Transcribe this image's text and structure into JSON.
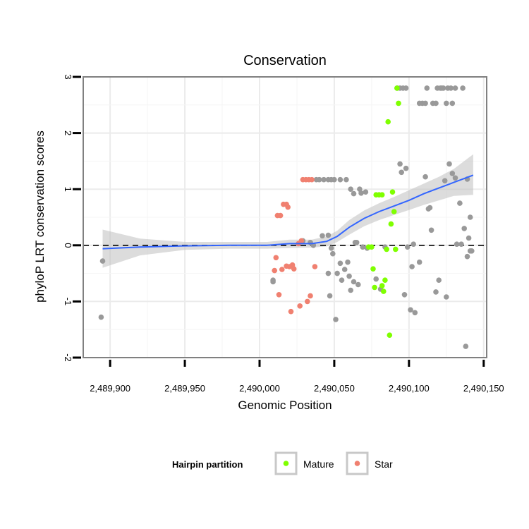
{
  "chart_data": {
    "type": "scatter",
    "title": "Conservation",
    "xlabel": "Genomic Position",
    "ylabel": "phyloP LRT conservation scores",
    "xlim": [
      2489882,
      2490152
    ],
    "ylim": [
      -2,
      3
    ],
    "x_ticks": [
      2489900,
      2489950,
      2490000,
      2490050,
      2490100,
      2490150
    ],
    "x_tick_labels": [
      "2,489,900",
      "2,489,950",
      "2,490,000",
      "2,490,050",
      "2,490,100",
      "2,490,150"
    ],
    "y_ticks": [
      -2,
      -1,
      0,
      1,
      2,
      3
    ],
    "y_tick_labels": [
      "-2",
      "-1",
      "0",
      "1",
      "2",
      "3"
    ],
    "reference_line": {
      "y": 0,
      "style": "dashed"
    },
    "legend": {
      "title": "Hairpin partition",
      "position": "bottom",
      "entries": [
        {
          "label": "Mature",
          "color": "#7fff00"
        },
        {
          "label": "Star",
          "color": "#f08070"
        }
      ]
    },
    "colors": {
      "Mature": "#7fff00",
      "Star": "#f08070",
      "Other": "#999999",
      "smooth": "#3366ff",
      "band": "#cccccc"
    },
    "series": [
      {
        "name": "Other",
        "points": [
          [
            2489895,
            -0.28
          ],
          [
            2489894,
            -1.28
          ],
          [
            2490009,
            -0.62
          ],
          [
            2490009,
            -0.65
          ],
          [
            2490029,
            0.08
          ],
          [
            2490034,
            0.05
          ],
          [
            2490036,
            0.0
          ],
          [
            2490038,
            1.17
          ],
          [
            2490040,
            1.17
          ],
          [
            2490043,
            1.17
          ],
          [
            2490046,
            1.17
          ],
          [
            2490048,
            1.17
          ],
          [
            2490050,
            1.17
          ],
          [
            2490054,
            1.17
          ],
          [
            2490058,
            1.17
          ],
          [
            2490042,
            0.17
          ],
          [
            2490046,
            0.18
          ],
          [
            2490048,
            -0.05
          ],
          [
            2490049,
            -0.15
          ],
          [
            2490046,
            -0.5
          ],
          [
            2490047,
            -0.9
          ],
          [
            2490051,
            -1.32
          ],
          [
            2490052,
            -0.5
          ],
          [
            2490054,
            -0.32
          ],
          [
            2490055,
            -0.62
          ],
          [
            2490057,
            -0.43
          ],
          [
            2490059,
            -0.3
          ],
          [
            2490060,
            -0.55
          ],
          [
            2490061,
            1.0
          ],
          [
            2490061,
            -0.8
          ],
          [
            2490063,
            0.92
          ],
          [
            2490063,
            -0.65
          ],
          [
            2490064,
            0.05
          ],
          [
            2490065,
            0.05
          ],
          [
            2490066,
            -0.7
          ],
          [
            2490067,
            1.0
          ],
          [
            2490068,
            0.93
          ],
          [
            2490069,
            -0.03
          ],
          [
            2490071,
            0.95
          ],
          [
            2490072,
            -0.05
          ],
          [
            2490078,
            -0.6
          ],
          [
            2490081,
            -0.78
          ],
          [
            2490084,
            -0.03
          ],
          [
            2490092,
            2.8
          ],
          [
            2490094,
            2.8
          ],
          [
            2490096,
            2.8
          ],
          [
            2490098,
            2.8
          ],
          [
            2490094,
            1.45
          ],
          [
            2490095,
            1.3
          ],
          [
            2490097,
            -0.88
          ],
          [
            2490098,
            1.37
          ],
          [
            2490099,
            -0.03
          ],
          [
            2490101,
            -1.15
          ],
          [
            2490102,
            -0.38
          ],
          [
            2490103,
            0.02
          ],
          [
            2490104,
            -1.2
          ],
          [
            2490107,
            2.53
          ],
          [
            2490109,
            2.53
          ],
          [
            2490111,
            2.53
          ],
          [
            2490107,
            -0.3
          ],
          [
            2490111,
            1.22
          ],
          [
            2490112,
            2.8
          ],
          [
            2490113,
            0.65
          ],
          [
            2490114,
            0.67
          ],
          [
            2490115,
            0.27
          ],
          [
            2490116,
            2.53
          ],
          [
            2490118,
            2.53
          ],
          [
            2490118,
            -0.83
          ],
          [
            2490119,
            2.8
          ],
          [
            2490121,
            2.8
          ],
          [
            2490120,
            -0.62
          ],
          [
            2490122,
            2.8
          ],
          [
            2490123,
            2.8
          ],
          [
            2490124,
            1.15
          ],
          [
            2490125,
            2.53
          ],
          [
            2490126,
            2.8
          ],
          [
            2490127,
            1.45
          ],
          [
            2490128,
            2.8
          ],
          [
            2490125,
            -0.92
          ],
          [
            2490129,
            2.53
          ],
          [
            2490129,
            1.28
          ],
          [
            2490131,
            2.8
          ],
          [
            2490131,
            1.2
          ],
          [
            2490132,
            0.02
          ],
          [
            2490134,
            0.75
          ],
          [
            2490135,
            0.02
          ],
          [
            2490136,
            2.8
          ],
          [
            2490137,
            0.3
          ],
          [
            2490138,
            -1.8
          ],
          [
            2490139,
            1.18
          ],
          [
            2490139,
            -0.2
          ],
          [
            2490140,
            0.13
          ],
          [
            2490141,
            0.5
          ],
          [
            2490141,
            -0.1
          ],
          [
            2490142,
            -0.1
          ]
        ]
      },
      {
        "name": "Star",
        "points": [
          [
            2490010,
            -0.45
          ],
          [
            2490011,
            -0.22
          ],
          [
            2490012,
            0.53
          ],
          [
            2490013,
            -0.88
          ],
          [
            2490014,
            0.53
          ],
          [
            2490015,
            -0.43
          ],
          [
            2490016,
            0.73
          ],
          [
            2490018,
            0.73
          ],
          [
            2490018,
            -0.37
          ],
          [
            2490019,
            0.68
          ],
          [
            2490020,
            -0.38
          ],
          [
            2490021,
            -1.18
          ],
          [
            2490022,
            -0.35
          ],
          [
            2490023,
            -0.42
          ],
          [
            2490026,
            0.03
          ],
          [
            2490027,
            -1.08
          ],
          [
            2490028,
            0.08
          ],
          [
            2490029,
            1.17
          ],
          [
            2490031,
            1.17
          ],
          [
            2490032,
            -1.0
          ],
          [
            2490033,
            1.17
          ],
          [
            2490034,
            -0.9
          ],
          [
            2490035,
            1.17
          ],
          [
            2490037,
            -0.38
          ]
        ]
      },
      {
        "name": "Mature",
        "points": [
          [
            2490073,
            -0.03
          ],
          [
            2490075,
            -0.03
          ],
          [
            2490076,
            -0.42
          ],
          [
            2490077,
            -0.75
          ],
          [
            2490078,
            0.9
          ],
          [
            2490080,
            0.9
          ],
          [
            2490082,
            0.9
          ],
          [
            2490082,
            -0.72
          ],
          [
            2490083,
            -0.82
          ],
          [
            2490084,
            -0.62
          ],
          [
            2490085,
            -0.07
          ],
          [
            2490086,
            2.2
          ],
          [
            2490087,
            -1.6
          ],
          [
            2490088,
            0.38
          ],
          [
            2490089,
            0.95
          ],
          [
            2490090,
            0.6
          ],
          [
            2490091,
            -0.07
          ],
          [
            2490092,
            2.8
          ],
          [
            2490093,
            2.53
          ]
        ]
      }
    ],
    "smooth_line": {
      "x": [
        2489895,
        2489920,
        2489950,
        2489980,
        2490005,
        2490020,
        2490035,
        2490045,
        2490052,
        2490060,
        2490070,
        2490080,
        2490090,
        2490100,
        2490110,
        2490120,
        2490130,
        2490143
      ],
      "y": [
        -0.06,
        -0.03,
        -0.01,
        0.0,
        0.0,
        0.03,
        0.03,
        0.07,
        0.16,
        0.32,
        0.48,
        0.6,
        0.7,
        0.8,
        0.92,
        1.02,
        1.12,
        1.25
      ]
    },
    "confidence_band": {
      "x": [
        2489895,
        2489920,
        2489950,
        2489980,
        2490005,
        2490020,
        2490035,
        2490045,
        2490052,
        2490060,
        2490070,
        2490080,
        2490090,
        2490100,
        2490110,
        2490120,
        2490130,
        2490143
      ],
      "upper": [
        0.28,
        0.12,
        0.06,
        0.06,
        0.06,
        0.1,
        0.1,
        0.16,
        0.26,
        0.45,
        0.62,
        0.75,
        0.86,
        0.98,
        1.1,
        1.22,
        1.36,
        1.62
      ],
      "lower": [
        -0.4,
        -0.18,
        -0.08,
        -0.06,
        -0.06,
        -0.05,
        -0.04,
        -0.02,
        0.06,
        0.19,
        0.34,
        0.45,
        0.54,
        0.63,
        0.72,
        0.8,
        0.88,
        0.9
      ]
    }
  }
}
